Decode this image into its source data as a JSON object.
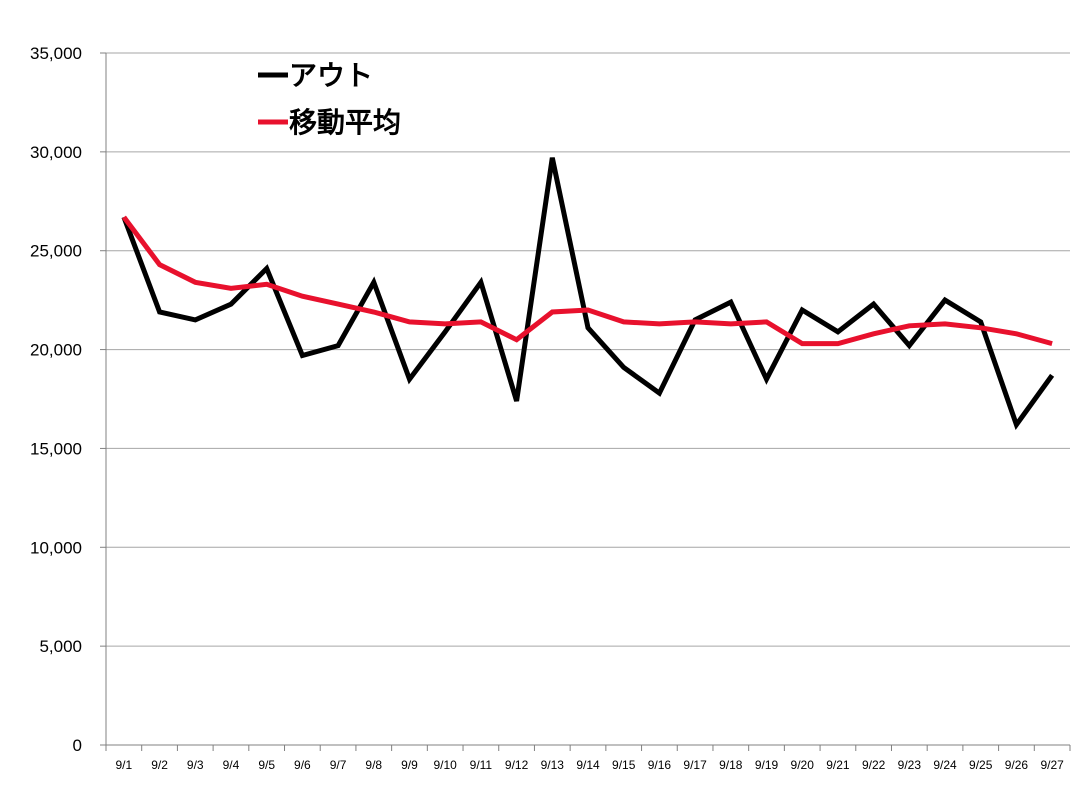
{
  "chart_data": {
    "type": "line",
    "categories": [
      "9/1",
      "9/2",
      "9/3",
      "9/4",
      "9/5",
      "9/6",
      "9/7",
      "9/8",
      "9/9",
      "9/10",
      "9/11",
      "9/12",
      "9/13",
      "9/14",
      "9/15",
      "9/16",
      "9/17",
      "9/18",
      "9/19",
      "9/20",
      "9/21",
      "9/22",
      "9/23",
      "9/24",
      "9/25",
      "9/26",
      "9/27"
    ],
    "series": [
      {
        "name": "アウト",
        "color": "#000000",
        "values": [
          26700,
          21900,
          21500,
          22300,
          24100,
          19700,
          20200,
          23400,
          18500,
          20900,
          23400,
          17400,
          29700,
          21100,
          19100,
          17800,
          21500,
          22400,
          18500,
          22000,
          20900,
          22300,
          20200,
          22500,
          21400,
          16200,
          18700
        ]
      },
      {
        "name": "移動平均",
        "color": "#e8112d",
        "values": [
          26700,
          24300,
          23400,
          23100,
          23300,
          22700,
          22300,
          21900,
          21400,
          21300,
          21400,
          20500,
          21900,
          22000,
          21400,
          21300,
          21400,
          21300,
          21400,
          20300,
          20300,
          20800,
          21200,
          21300,
          21100,
          20800,
          20300
        ]
      }
    ],
    "ylim": [
      0,
      35000
    ],
    "ytick_labels": [
      "0",
      "5,000",
      "10,000",
      "15,000",
      "20,000",
      "25,000",
      "30,000",
      "35,000"
    ],
    "grid": true,
    "legend_position": "top-left"
  }
}
